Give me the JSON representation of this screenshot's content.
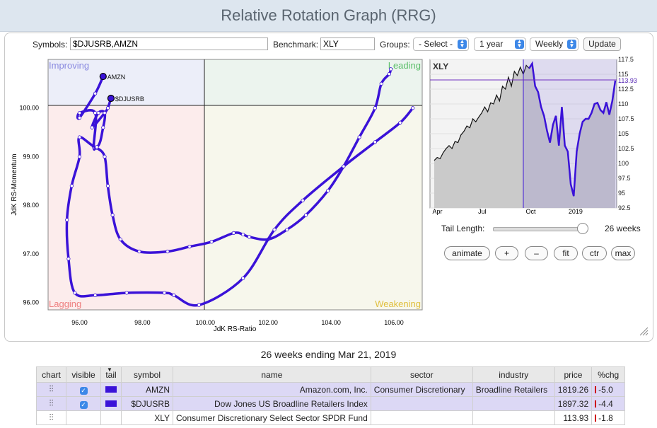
{
  "header": {
    "title": "Relative Rotation Graph (RRG)"
  },
  "controls": {
    "symbols_label": "Symbols:",
    "symbols_value": "$DJUSRB,AMZN",
    "benchmark_label": "Benchmark:",
    "benchmark_value": "XLY",
    "groups_label": "Groups:",
    "groups_value": "- Select -",
    "period_value": "1 year",
    "frequency_value": "Weekly",
    "update_label": "Update"
  },
  "rrg": {
    "quadrants": {
      "improving": "Improving",
      "leading": "Leading",
      "lagging": "Lagging",
      "weakening": "Weakening"
    },
    "xlabel": "JdK RS-Ratio",
    "ylabel": "JdK RS-Momentum",
    "x_ticks": [
      "96.00",
      "98.00",
      "100.00",
      "102.00",
      "104.00",
      "106.00"
    ],
    "y_ticks": [
      "96.00",
      "97.00",
      "98.00",
      "99.00",
      "100.00"
    ],
    "series": [
      {
        "name": "AMZN",
        "color": "#3a12d8"
      },
      {
        "name": "$DJUSRB",
        "color": "#3a12d8"
      }
    ]
  },
  "chart_data": {
    "type": "scatter",
    "xlabel": "JdK RS-Ratio",
    "ylabel": "JdK RS-Momentum",
    "xlim": [
      95.0,
      106.9
    ],
    "ylim": [
      95.85,
      101.0
    ],
    "center": [
      100,
      100
    ],
    "series": [
      {
        "name": "AMZN",
        "x": [
          105.9,
          105.85,
          105.6,
          105.4,
          104.9,
          104.4,
          103.9,
          103.2,
          102.6,
          102.0,
          101.4,
          101.2,
          100.9,
          100.2,
          99.5,
          98.8,
          97.9,
          97.3,
          97.05,
          96.9,
          96.8,
          96.55,
          96.45,
          96.5,
          96.0,
          96.0,
          96.5,
          96.75
        ],
        "y": [
          100.8,
          100.7,
          100.5,
          100.0,
          99.4,
          98.8,
          98.3,
          97.8,
          97.5,
          97.3,
          97.35,
          97.4,
          97.43,
          97.25,
          97.15,
          97.05,
          97.05,
          97.3,
          97.8,
          98.4,
          99.0,
          99.18,
          99.2,
          99.9,
          99.9,
          99.8,
          100.3,
          100.65
        ]
      },
      {
        "name": "$DJUSRB",
        "x": [
          106.6,
          106.2,
          105.4,
          104.4,
          103.1,
          102.2,
          101.2,
          99.8,
          99.0,
          98.7,
          97.5,
          96.5,
          95.85,
          95.65,
          95.6,
          95.75,
          96.0,
          96.0,
          96.55,
          96.75,
          96.8,
          96.6,
          96.4,
          96.8,
          96.9,
          97.0
        ],
        "y": [
          100.0,
          99.7,
          99.3,
          98.8,
          98.1,
          97.5,
          96.5,
          95.95,
          96.15,
          96.2,
          96.2,
          96.15,
          96.2,
          96.9,
          97.7,
          98.4,
          99.0,
          99.4,
          99.2,
          99.6,
          99.9,
          99.9,
          99.6,
          99.9,
          100.0,
          100.2
        ]
      }
    ]
  },
  "bench_chart": {
    "type": "line",
    "label": "XLY",
    "current_value": "113.93",
    "y_ticks": [
      "117.5",
      "115",
      "112.5",
      "110",
      "107.5",
      "105",
      "102.5",
      "100",
      "97.5",
      "95",
      "92.5"
    ],
    "x_ticks": [
      "Apr",
      "Jul",
      "Oct",
      "2019"
    ],
    "ylim": [
      92.5,
      117.5
    ],
    "values": [
      100.5,
      101.0,
      100.8,
      101.8,
      102.5,
      103.0,
      102.5,
      103.7,
      103.5,
      104.8,
      105.4,
      106.3,
      106.0,
      107.5,
      107.0,
      107.8,
      108.5,
      109.5,
      108.7,
      110.2,
      110.0,
      111.5,
      110.5,
      113.0,
      112.5,
      114.5,
      113.0,
      115.5,
      114.8,
      116.2,
      115.0,
      116.5,
      116.0,
      116.8,
      113.0,
      112.0,
      109.5,
      108.0,
      105.5,
      103.5,
      106.5,
      108.0,
      103.0,
      109.5,
      103.0,
      102.0,
      96.5,
      94.5,
      102.0,
      105.0,
      107.0,
      107.5,
      107.5,
      108.5,
      110.0,
      110.2,
      109.0,
      108.5,
      110.3,
      108.2,
      110.5,
      113.93
    ]
  },
  "rrg_controls": {
    "tail_length_label": "Tail Length:",
    "tail_length_value": "26 weeks",
    "buttons": [
      "animate",
      "+",
      "–",
      "fit",
      "ctr",
      "max"
    ]
  },
  "caption": "26 weeks ending Mar 21, 2019",
  "table": {
    "headers": [
      "chart",
      "visible",
      "tail",
      "symbol",
      "name",
      "sector",
      "industry",
      "price",
      "%chg"
    ],
    "rows": [
      {
        "symbol": "AMZN",
        "name": "Amazon.com, Inc.",
        "sector": "Consumer Discretionary",
        "industry": "Broadline Retailers",
        "price": "1819.26",
        "chg": "-5.0",
        "visible": true,
        "tail": true
      },
      {
        "symbol": "$DJUSRB",
        "name": "Dow Jones US Broadline Retailers Index",
        "sector": "",
        "industry": "",
        "price": "1897.32",
        "chg": "-4.4",
        "visible": true,
        "tail": true
      },
      {
        "symbol": "XLY",
        "name": "Consumer Discretionary Select Sector SPDR Fund",
        "sector": "",
        "industry": "",
        "price": "113.93",
        "chg": "-1.8",
        "visible": false,
        "tail": false
      }
    ]
  }
}
